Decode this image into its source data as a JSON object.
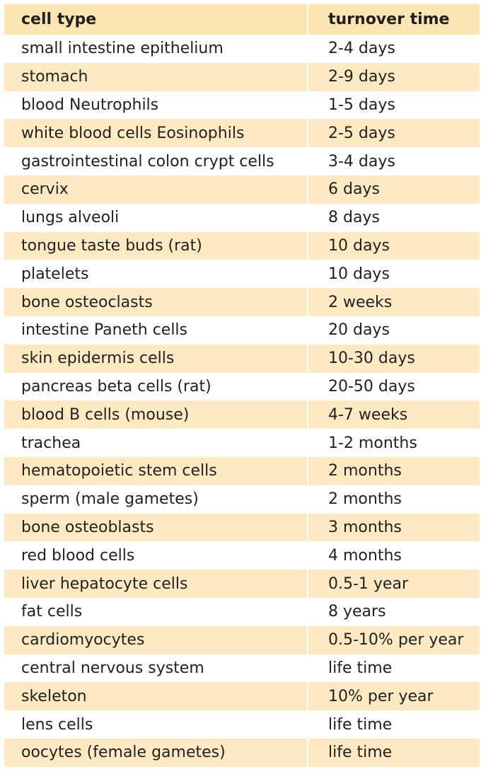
{
  "table": {
    "headers": {
      "cell_type": "cell type",
      "turnover_time": "turnover time"
    },
    "rows": [
      {
        "cell_type": "small intestine epithelium",
        "turnover_time": "2-4 days"
      },
      {
        "cell_type": "stomach",
        "turnover_time": "2-9 days"
      },
      {
        "cell_type": "blood Neutrophils",
        "turnover_time": "1-5 days"
      },
      {
        "cell_type": "white blood cells Eosinophils",
        "turnover_time": "2-5 days"
      },
      {
        "cell_type": "gastrointestinal colon crypt cells",
        "turnover_time": "3-4 days"
      },
      {
        "cell_type": "cervix",
        "turnover_time": "6 days"
      },
      {
        "cell_type": "lungs alveoli",
        "turnover_time": "8 days"
      },
      {
        "cell_type": "tongue taste buds (rat)",
        "turnover_time": "10 days"
      },
      {
        "cell_type": "platelets",
        "turnover_time": "10 days"
      },
      {
        "cell_type": "bone osteoclasts",
        "turnover_time": "2 weeks"
      },
      {
        "cell_type": "intestine Paneth cells",
        "turnover_time": "20 days"
      },
      {
        "cell_type": "skin epidermis cells",
        "turnover_time": "10-30 days"
      },
      {
        "cell_type": "pancreas beta cells (rat)",
        "turnover_time": "20-50 days"
      },
      {
        "cell_type": "blood B cells (mouse)",
        "turnover_time": "4-7 weeks"
      },
      {
        "cell_type": "trachea",
        "turnover_time": "1-2 months"
      },
      {
        "cell_type": "hematopoietic stem cells",
        "turnover_time": "2 months"
      },
      {
        "cell_type": "sperm (male gametes)",
        "turnover_time": "2 months"
      },
      {
        "cell_type": "bone osteoblasts",
        "turnover_time": "3 months"
      },
      {
        "cell_type": "red blood cells",
        "turnover_time": "4 months"
      },
      {
        "cell_type": "liver hepatocyte cells",
        "turnover_time": "0.5-1 year"
      },
      {
        "cell_type": "fat cells",
        "turnover_time": "8 years"
      },
      {
        "cell_type": "cardiomyocytes",
        "turnover_time": "0.5-10% per year"
      },
      {
        "cell_type": "central nervous system",
        "turnover_time": "life time"
      },
      {
        "cell_type": "skeleton",
        "turnover_time": "10% per year"
      },
      {
        "cell_type": "lens cells",
        "turnover_time": "life time"
      },
      {
        "cell_type": "oocytes (female gametes)",
        "turnover_time": "life time"
      }
    ]
  },
  "colors": {
    "header_bg": "#fde6b1",
    "stripe_bg": "#fdeac2",
    "text": "#231f20"
  }
}
